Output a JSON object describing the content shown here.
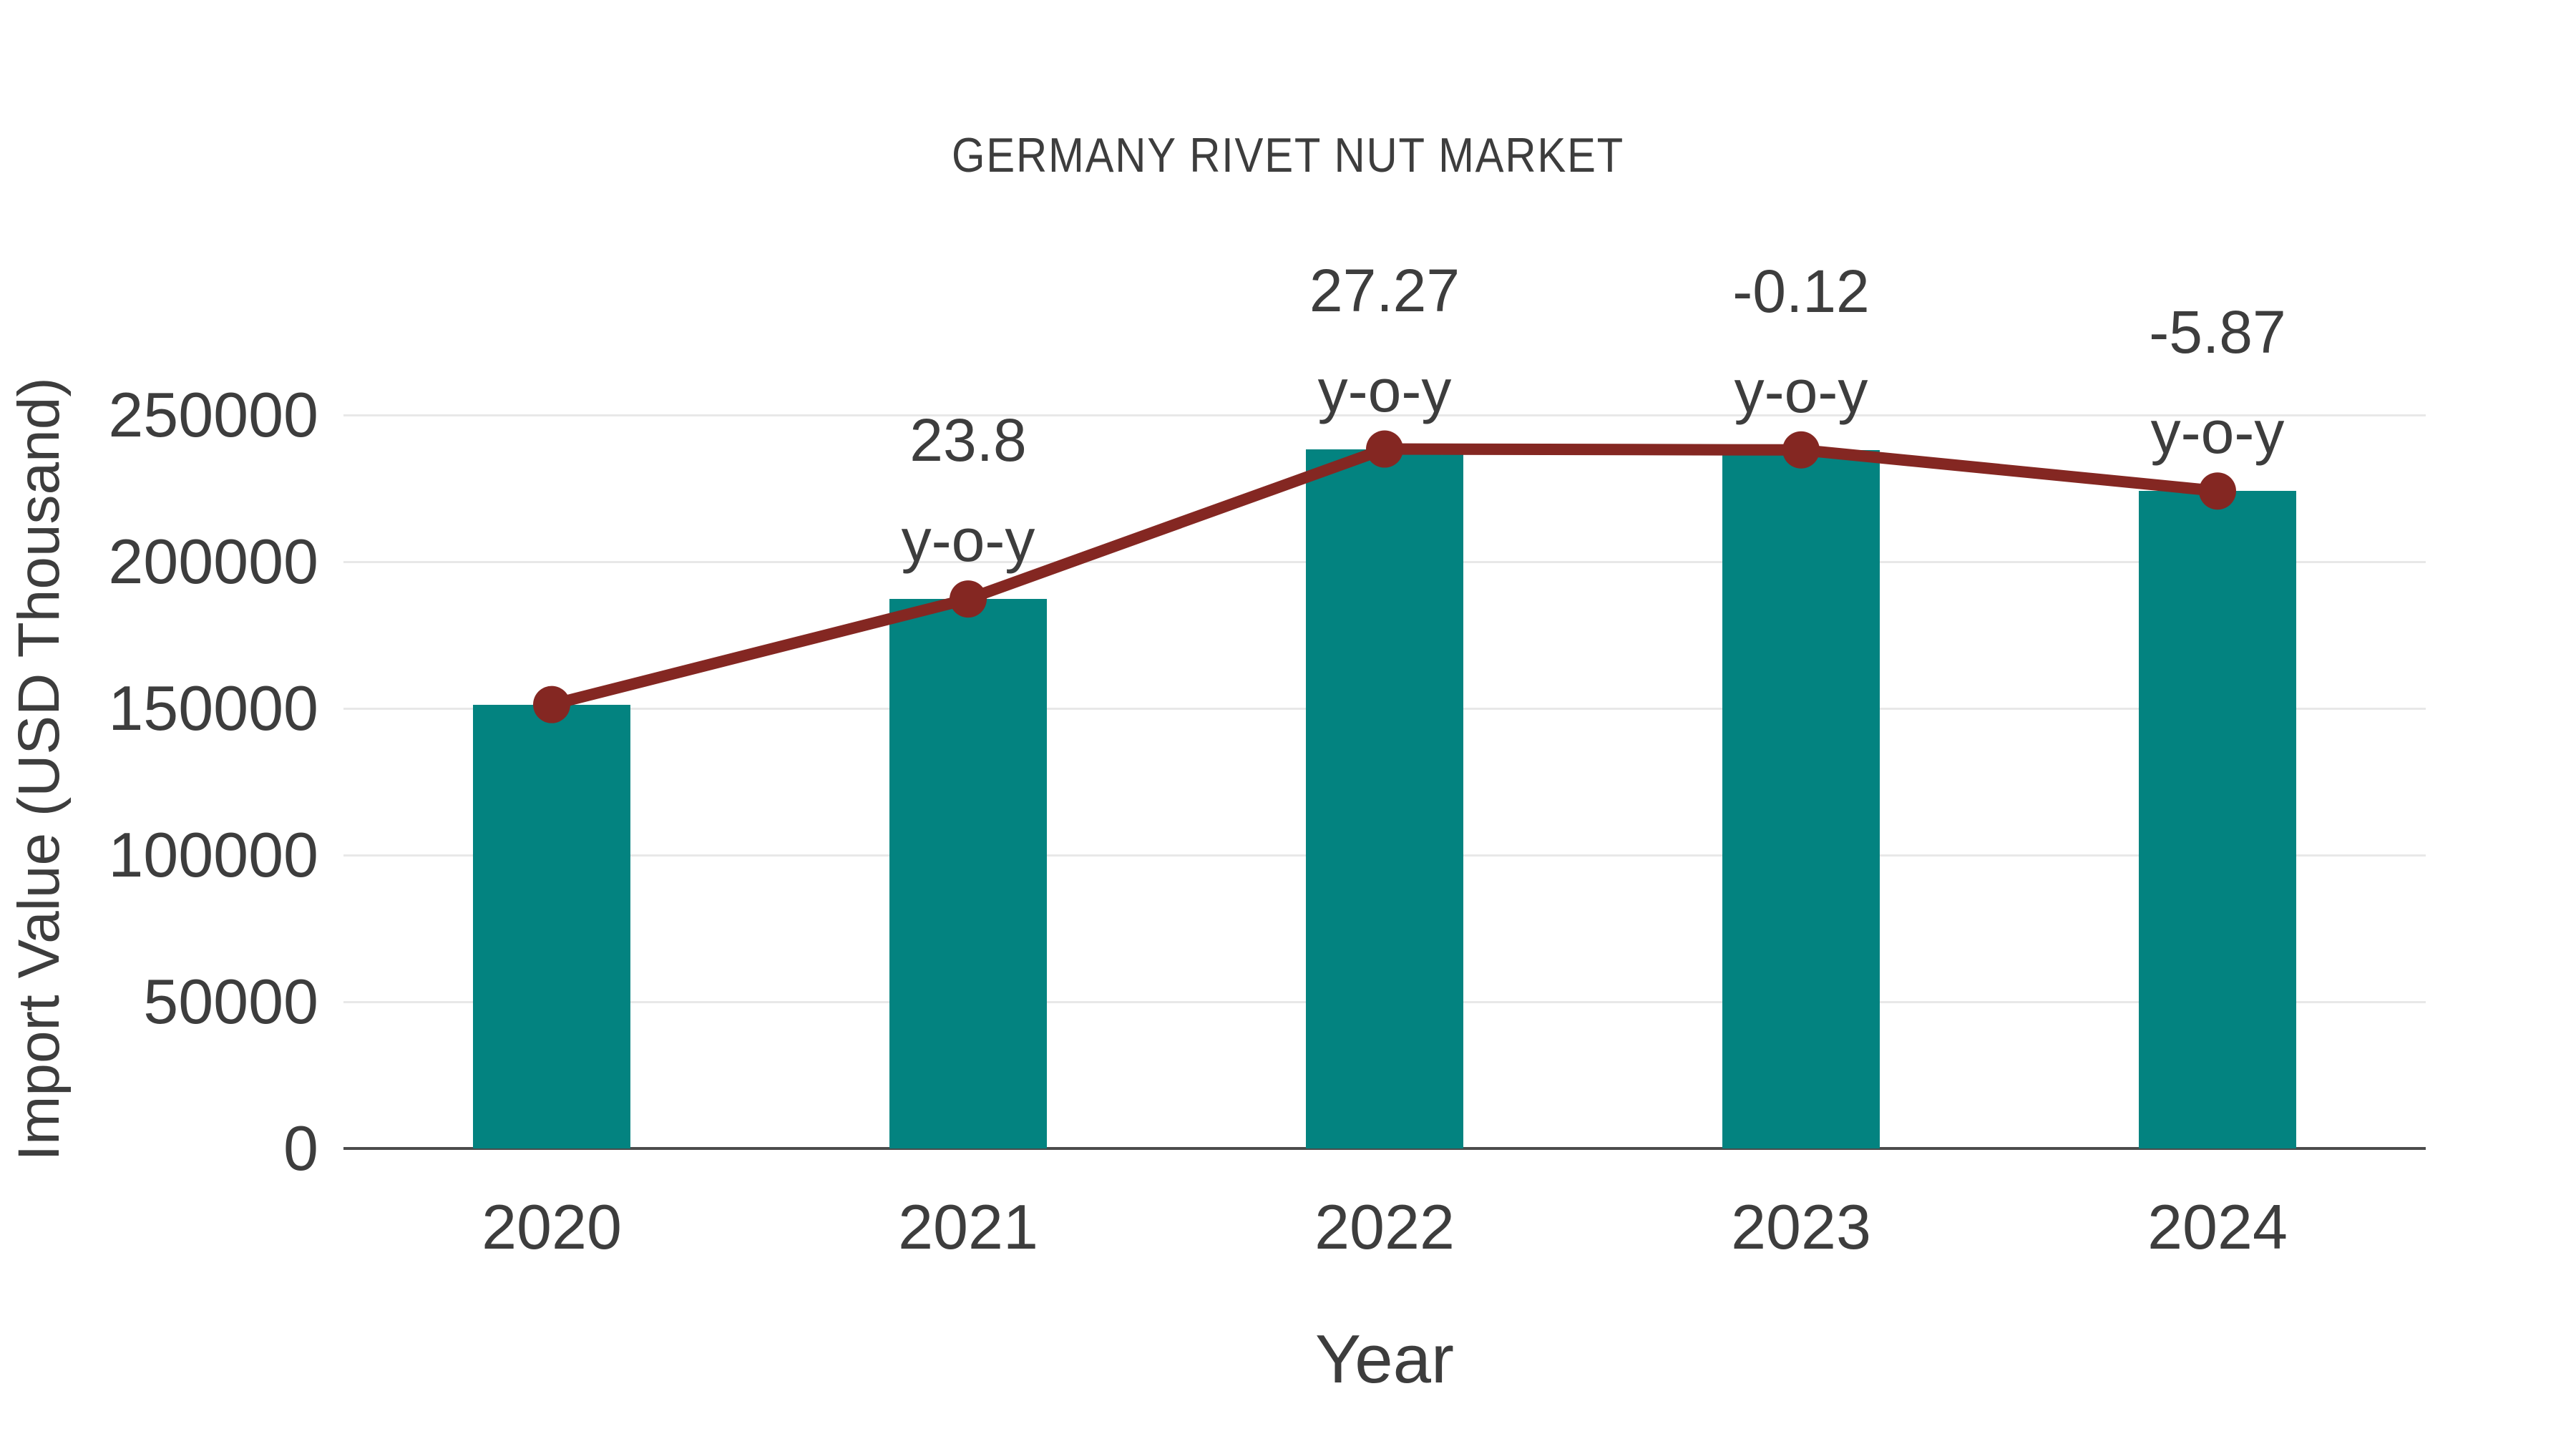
{
  "page": {
    "background": "#ffffff"
  },
  "chart_data": {
    "type": "bar",
    "title": "GERMANY RIVET NUT MARKET",
    "xlabel": "Year",
    "ylabel": "Import Value (USD Thousand)",
    "categories": [
      "2020",
      "2021",
      "2022",
      "2023",
      "2024"
    ],
    "series": [
      {
        "name": "Import Value (USD Thousand)",
        "type": "bar",
        "color": "#038380",
        "values": [
          151300,
          187300,
          238400,
          238100,
          224100
        ]
      },
      {
        "name": "y-o-y growth",
        "type": "line",
        "color": "#842722",
        "values": [
          151300,
          187300,
          238400,
          238100,
          224100
        ],
        "point_labels": [
          "",
          "23.8",
          "27.27",
          "-0.12",
          "-5.87"
        ],
        "point_label_suffix": "y-o-y"
      }
    ],
    "ylim": [
      0,
      250000
    ],
    "yticks": [
      0,
      50000,
      100000,
      150000,
      200000,
      250000
    ],
    "grid": true,
    "legend": false,
    "colors": {
      "text": "#3d3d3d",
      "grid": "#e8e8e8",
      "axis": "#4c4c4c"
    }
  }
}
